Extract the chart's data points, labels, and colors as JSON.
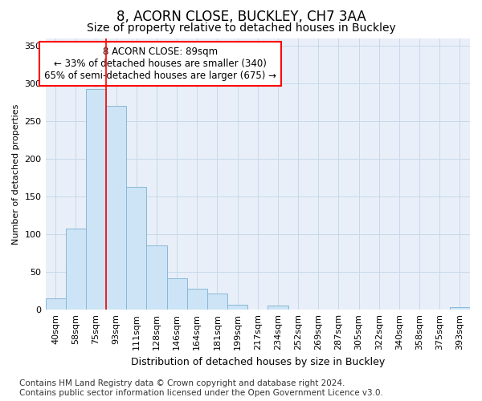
{
  "title": "8, ACORN CLOSE, BUCKLEY, CH7 3AA",
  "subtitle": "Size of property relative to detached houses in Buckley",
  "xlabel": "Distribution of detached houses by size in Buckley",
  "ylabel": "Number of detached properties",
  "categories": [
    "40sqm",
    "58sqm",
    "75sqm",
    "93sqm",
    "111sqm",
    "128sqm",
    "146sqm",
    "164sqm",
    "181sqm",
    "199sqm",
    "217sqm",
    "234sqm",
    "252sqm",
    "269sqm",
    "287sqm",
    "305sqm",
    "322sqm",
    "340sqm",
    "358sqm",
    "375sqm",
    "393sqm"
  ],
  "values": [
    15,
    108,
    293,
    270,
    163,
    85,
    42,
    28,
    21,
    7,
    0,
    6,
    0,
    0,
    0,
    0,
    0,
    0,
    0,
    0,
    3
  ],
  "bar_color": "#cce4f5",
  "bar_edgecolor": "#8ab8d8",
  "bar_linewidth": 0.7,
  "annotation_text": "8 ACORN CLOSE: 89sqm\n← 33% of detached houses are smaller (340)\n65% of semi-detached houses are larger (675) →",
  "annotation_box_color": "white",
  "annotation_box_edgecolor": "red",
  "vline_color": "red",
  "vline_bin_index": 3,
  "ylim": [
    0,
    360
  ],
  "yticks": [
    0,
    50,
    100,
    150,
    200,
    250,
    300,
    350
  ],
  "grid_color": "#c8d8ec",
  "bg_color": "#e8eff8",
  "footer_text": "Contains HM Land Registry data © Crown copyright and database right 2024.\nContains public sector information licensed under the Open Government Licence v3.0.",
  "title_fontsize": 12,
  "subtitle_fontsize": 10,
  "xlabel_fontsize": 9,
  "ylabel_fontsize": 8,
  "tick_fontsize": 8,
  "annotation_fontsize": 8.5,
  "footer_fontsize": 7.5
}
